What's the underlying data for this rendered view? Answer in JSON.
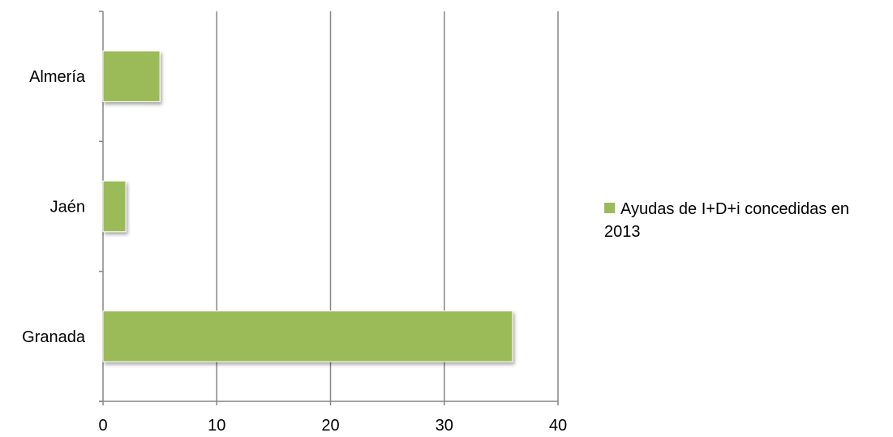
{
  "chart_data": {
    "type": "bar",
    "orientation": "horizontal",
    "categories": [
      "Granada",
      "Jaén",
      "Almería"
    ],
    "series": [
      {
        "name": "Ayudas de I+D+i concedidas en 2013",
        "values": [
          36,
          2,
          5
        ],
        "color": "#9bbb59"
      }
    ],
    "xlim": [
      0,
      40
    ],
    "x_ticks": [
      "0",
      "10",
      "20",
      "30",
      "40"
    ],
    "grid": "vertical",
    "legend_position": "right"
  }
}
